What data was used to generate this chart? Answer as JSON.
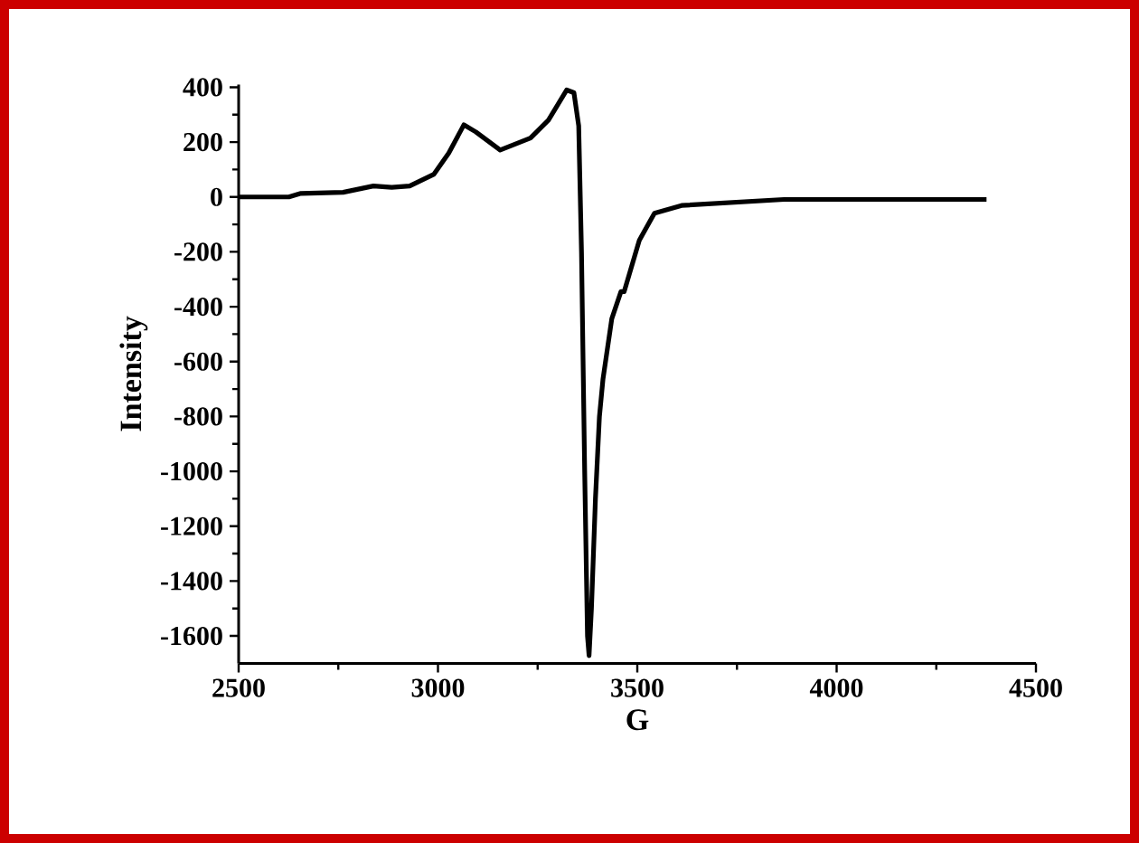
{
  "chart_data": {
    "type": "line",
    "xlabel": "G",
    "ylabel": "Intensity",
    "color": "#000000",
    "x": [
      2500,
      2626,
      2656,
      2762,
      2838,
      2884,
      2929,
      2990,
      3027,
      3065,
      3095,
      3156,
      3232,
      3277,
      3323,
      3341,
      3353,
      3360,
      3368,
      3375,
      3379,
      3385,
      3395,
      3405,
      3414,
      3436,
      3459,
      3467,
      3505,
      3543,
      3611,
      3868,
      4376
    ],
    "values": [
      0,
      0,
      13,
      17,
      40,
      35,
      40,
      83,
      160,
      263,
      237,
      171,
      215,
      280,
      390,
      380,
      259,
      -200,
      -1000,
      -1600,
      -1672,
      -1500,
      -1100,
      -800,
      -663,
      -444,
      -345,
      -345,
      -158,
      -59,
      -31,
      -9,
      -9
    ],
    "xlim": [
      2500,
      4500
    ],
    "ylim": [
      -1700,
      410
    ],
    "xticks": [
      2500,
      3000,
      3500,
      4000,
      4500
    ],
    "yticks": [
      -1600,
      -1400,
      -1200,
      -1000,
      -800,
      -600,
      -400,
      -200,
      0,
      200,
      400
    ]
  }
}
